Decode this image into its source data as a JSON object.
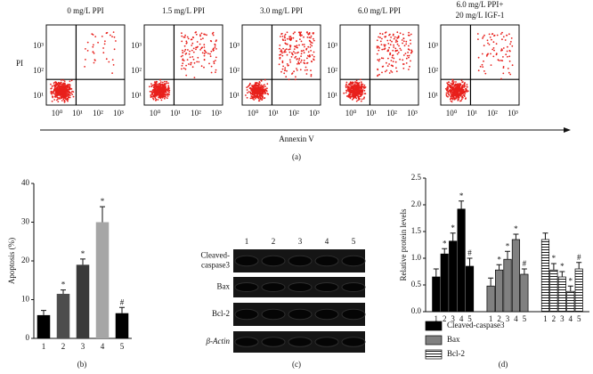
{
  "flow_panel": {
    "y_label": "PI",
    "x_label": "Annexin V",
    "panel_label": "(a)",
    "log_ticks": [
      "10⁰",
      "10¹",
      "10²",
      "10³"
    ],
    "plots": [
      {
        "title": [
          "0 mg/L PPI"
        ]
      },
      {
        "title": [
          "1.5 mg/L PPI"
        ]
      },
      {
        "title": [
          "3.0 mg/L PPI"
        ]
      },
      {
        "title": [
          "6.0 mg/L PPI"
        ]
      },
      {
        "title": [
          "6.0 mg/L PPI+",
          "20 mg/L IGF-1"
        ]
      }
    ]
  },
  "blot_panel": {
    "panel_label": "(c)",
    "lanes": [
      "1",
      "2",
      "3",
      "4",
      "5"
    ],
    "rows": [
      [
        "Cleaved-",
        "caspase3"
      ],
      [
        "Bax"
      ],
      [
        "Bcl-2"
      ],
      [
        "β-Actin"
      ]
    ]
  },
  "chart_data": [
    {
      "type": "bar",
      "y_label": "Apoptosis (%)",
      "panel_label": "(b)",
      "categories": [
        "1",
        "2",
        "3",
        "4",
        "5"
      ],
      "values": [
        6,
        11.5,
        19,
        30,
        6.5
      ],
      "errors": [
        1.2,
        1,
        1.5,
        4,
        1.5
      ],
      "colors": [
        "#000000",
        "#4d4d4d",
        "#3a3a3a",
        "#a6a6a6",
        "#000000"
      ],
      "annotations": [
        null,
        "*",
        "*",
        "*",
        "#"
      ],
      "ylim": [
        0,
        40
      ],
      "yticks": [
        0,
        10,
        20,
        30,
        40
      ]
    },
    {
      "type": "grouped_bar",
      "y_label": "Relative protein levels",
      "panel_label": "(d)",
      "categories": [
        "1",
        "2",
        "3",
        "4",
        "5"
      ],
      "series": [
        {
          "name": "Cleaved-caspase3",
          "color": "#000000",
          "values": [
            0.65,
            1.08,
            1.32,
            1.92,
            0.85
          ],
          "errors": [
            0.15,
            0.1,
            0.15,
            0.15,
            0.15
          ],
          "annotations": [
            null,
            "*",
            "*",
            "*",
            "#"
          ]
        },
        {
          "name": "Bax",
          "color": "#808080",
          "values": [
            0.48,
            0.78,
            0.98,
            1.35,
            0.7
          ],
          "errors": [
            0.15,
            0.1,
            0.15,
            0.1,
            0.1
          ],
          "annotations": [
            null,
            "*",
            "*",
            "*",
            "#"
          ]
        },
        {
          "name": "Bcl-2",
          "color": "#ffffff",
          "hatch": true,
          "values": [
            1.35,
            0.78,
            0.65,
            0.38,
            0.8
          ],
          "errors": [
            0.12,
            0.12,
            0.1,
            0.1,
            0.12
          ],
          "annotations": [
            null,
            "*",
            "*",
            "*",
            "#"
          ]
        }
      ],
      "ylim": [
        0,
        2.5
      ],
      "yticks": [
        {
          "value": 0,
          "label": "0.0"
        },
        {
          "value": 0.5,
          "label": "0.5"
        },
        {
          "value": 1,
          "label": "1.0"
        },
        {
          "value": 1.5,
          "label": "1.5"
        },
        {
          "value": 2,
          "label": "2.0"
        },
        {
          "value": 2.5,
          "label": "2.5"
        }
      ]
    }
  ]
}
